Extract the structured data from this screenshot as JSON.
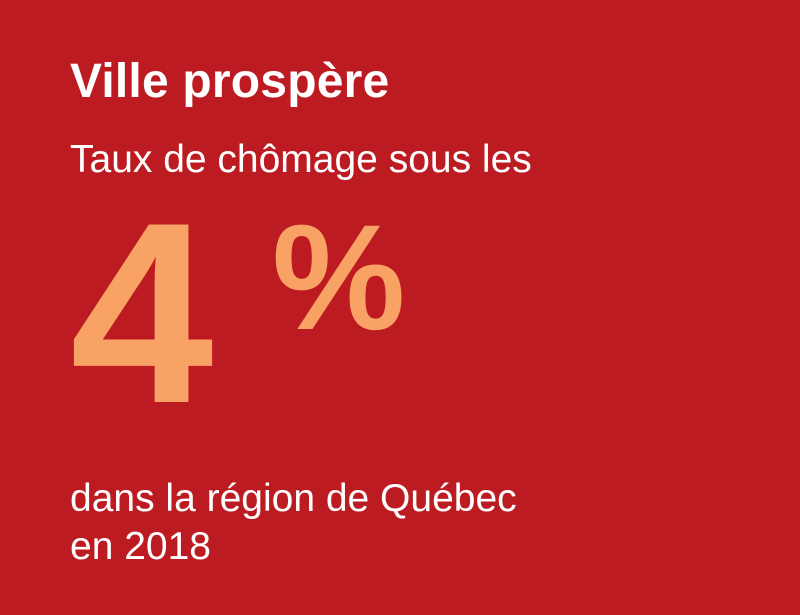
{
  "card": {
    "background_color": "#bd1b22",
    "text_color": "#ffffff",
    "accent_color": "#f9a266",
    "title": "Ville prospère",
    "subtitle": "Taux de chômage sous les",
    "figure": {
      "number": "4",
      "unit": "%",
      "value_percent": 4
    },
    "caption": {
      "line1": "dans la région de Québec",
      "line2": "en 2018"
    }
  }
}
